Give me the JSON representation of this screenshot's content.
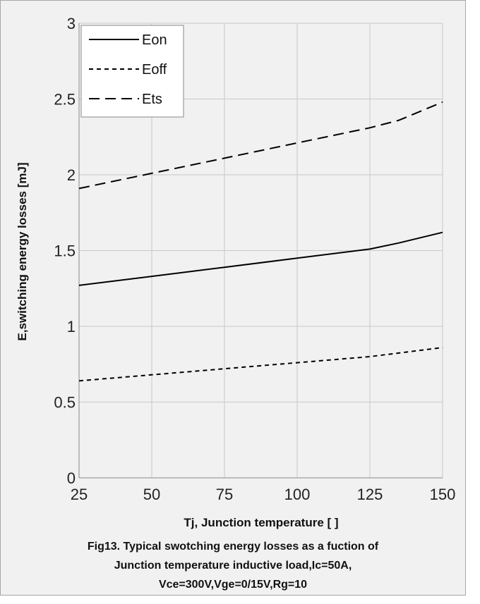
{
  "chart_data": {
    "type": "line",
    "xlabel": "Tj, Junction temperature [    ]",
    "ylabel": "E,switching energy losses [mJ]",
    "xlim": [
      25,
      150
    ],
    "ylim": [
      0,
      3
    ],
    "xticks": [
      25,
      50,
      75,
      100,
      125,
      150
    ],
    "yticks": [
      0,
      0.5,
      1,
      1.5,
      2,
      2.5,
      3
    ],
    "ytick_labels": [
      "0",
      "0.5",
      "1",
      "1.5",
      "2",
      "2.5",
      "3"
    ],
    "grid": true,
    "legend_position": "top-left",
    "series": [
      {
        "name": "Eon",
        "style": "solid",
        "x": [
          25,
          50,
          75,
          100,
          125,
          135,
          150
        ],
        "y": [
          1.27,
          1.33,
          1.39,
          1.45,
          1.51,
          1.55,
          1.62
        ]
      },
      {
        "name": "Eoff",
        "style": "dotted",
        "x": [
          25,
          50,
          75,
          100,
          125,
          150
        ],
        "y": [
          0.64,
          0.68,
          0.72,
          0.76,
          0.8,
          0.86
        ]
      },
      {
        "name": "Ets",
        "style": "dashed",
        "x": [
          25,
          50,
          75,
          100,
          125,
          135,
          150
        ],
        "y": [
          1.91,
          2.01,
          2.11,
          2.21,
          2.31,
          2.36,
          2.48
        ]
      }
    ]
  },
  "caption": {
    "line1": "Fig13. Typical swotching energy losses as a fuction of",
    "line2": "Junction temperature    inductive load,Ic=50A,",
    "line3": "Vce=300V,Vge=0/15V,Rg=10"
  },
  "colors": {
    "background": "#f1f1f1",
    "grid": "#c8c8c8",
    "axis": "#888888",
    "line": "#000000"
  }
}
